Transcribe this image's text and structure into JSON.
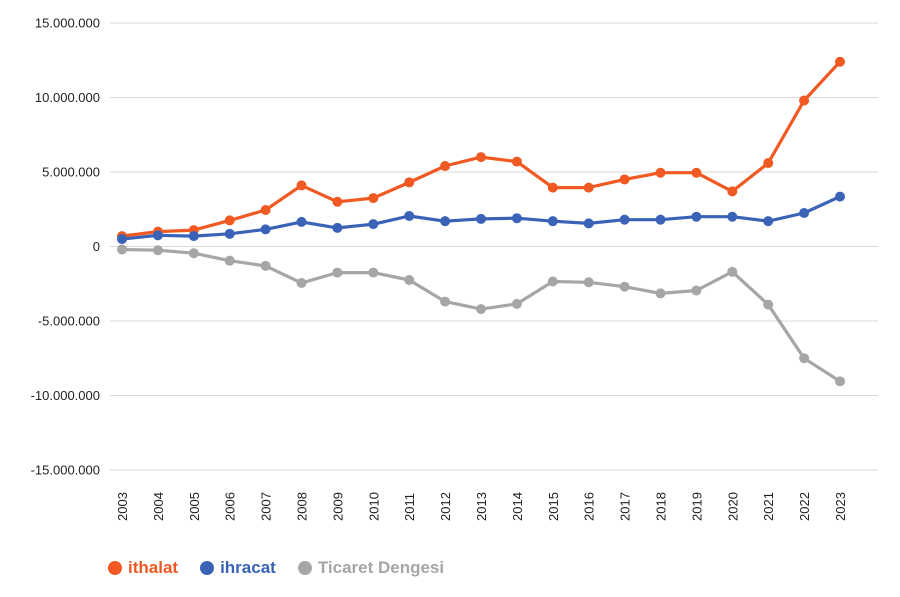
{
  "chart_data": {
    "type": "line",
    "x": [
      "2003",
      "2004",
      "2005",
      "2006",
      "2007",
      "2008",
      "2009",
      "2010",
      "2011",
      "2012",
      "2013",
      "2014",
      "2015",
      "2016",
      "2017",
      "2018",
      "2019",
      "2020",
      "2021",
      "2022",
      "2023"
    ],
    "ylim": [
      -15000000,
      15000000
    ],
    "yticks": [
      15000000,
      10000000,
      5000000,
      0,
      -5000000,
      -10000000,
      -15000000
    ],
    "ytick_labels": [
      "15.000.000",
      "10.000.000",
      "5.000.000",
      "0",
      "-5.000.000",
      "-10.000.000",
      "-15.000.000"
    ],
    "series": [
      {
        "name": "ithalat",
        "color": "#f05a22",
        "values": [
          700000,
          1000000,
          1100000,
          1750000,
          2450000,
          4100000,
          3000000,
          3250000,
          4300000,
          5400000,
          6000000,
          5700000,
          3950000,
          3950000,
          4500000,
          4950000,
          4950000,
          3700000,
          5600000,
          9800000,
          12400000
        ]
      },
      {
        "name": "ihracat",
        "color": "#3a63b8",
        "values": [
          500000,
          750000,
          700000,
          850000,
          1150000,
          1650000,
          1250000,
          1500000,
          2050000,
          1700000,
          1850000,
          1900000,
          1700000,
          1550000,
          1800000,
          1800000,
          2000000,
          2000000,
          1700000,
          2250000,
          3350000
        ]
      },
      {
        "name": "Ticaret Dengesi",
        "color": "#a6a6a6",
        "values": [
          -200000,
          -250000,
          -450000,
          -950000,
          -1300000,
          -2450000,
          -1750000,
          -1750000,
          -2250000,
          -3700000,
          -4200000,
          -3850000,
          -2350000,
          -2400000,
          -2700000,
          -3150000,
          -2950000,
          -1700000,
          -3900000,
          -7500000,
          -9050000
        ]
      }
    ]
  },
  "legend": {
    "items": [
      {
        "label": "ithalat",
        "color": "#f05a22"
      },
      {
        "label": "ihracat",
        "color": "#3a63b8"
      },
      {
        "label": "Ticaret Dengesi",
        "color": "#a6a6a6"
      }
    ]
  }
}
